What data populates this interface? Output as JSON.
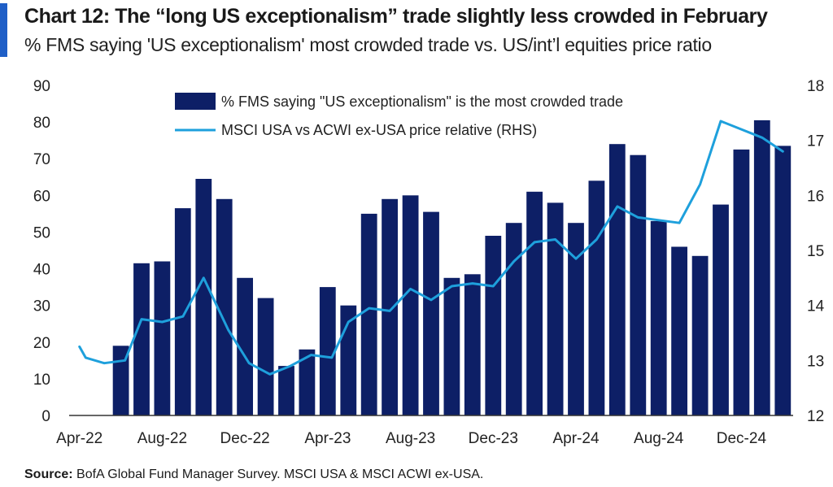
{
  "header": {
    "title": "Chart 12: The “long US exceptionalism” trade slightly less crowded in February",
    "subtitle": "% FMS saying 'US exceptionalism' most crowded trade vs. US/int’l equities price ratio"
  },
  "footer": {
    "source_label": "Source:",
    "source_text": " BofA Global Fund Manager Survey. MSCI USA & MSCI ACWI ex-USA."
  },
  "colors": {
    "accent": "#1f5fc7",
    "bar": "#0d1f66",
    "line": "#1ea0dc"
  },
  "chart_data": {
    "type": "bar",
    "months": [
      "Apr-22",
      "May-22",
      "Jun-22",
      "Jul-22",
      "Aug-22",
      "Sep-22",
      "Oct-22",
      "Nov-22",
      "Dec-22",
      "Jan-23",
      "Feb-23",
      "Mar-23",
      "Apr-23",
      "May-23",
      "Jun-23",
      "Jul-23",
      "Aug-23",
      "Sep-23",
      "Oct-23",
      "Nov-23",
      "Dec-23",
      "Jan-24",
      "Feb-24",
      "Mar-24",
      "Apr-24",
      "May-24",
      "Jun-24",
      "Jul-24",
      "Aug-24",
      "Sep-24",
      "Oct-24",
      "Nov-24",
      "Dec-24",
      "Jan-25",
      "Feb-25"
    ],
    "x_tick_labels": [
      "Apr-22",
      "Aug-22",
      "Dec-22",
      "Apr-23",
      "Aug-23",
      "Dec-23",
      "Apr-24",
      "Aug-24",
      "Dec-24"
    ],
    "y_left": {
      "ticks": [
        0,
        10,
        20,
        30,
        40,
        50,
        60,
        70,
        80,
        90
      ],
      "ylim": [
        0,
        90
      ]
    },
    "y_right": {
      "ticks": [
        12,
        13,
        14,
        15,
        16,
        17,
        18
      ],
      "ylim": [
        12,
        18
      ]
    },
    "legend_position": "top-center",
    "series": [
      {
        "name": "% FMS saying \"US exceptionalism\" is the most crowded trade",
        "type": "bar",
        "axis": "left",
        "values": [
          null,
          null,
          19,
          41.5,
          42,
          56.5,
          64.5,
          59,
          37.5,
          32,
          13.5,
          18,
          35,
          30,
          55,
          59,
          60,
          55.5,
          37.5,
          38.5,
          49,
          52.5,
          61,
          58,
          52.5,
          64,
          74,
          71,
          53,
          46,
          43.5,
          57.5,
          72.5,
          80.5,
          73.5
        ]
      },
      {
        "name": "MSCI USA vs ACWI ex-USA price relative (RHS)",
        "type": "line",
        "axis": "right",
        "points": [
          [
            0,
            13.25
          ],
          [
            0.3,
            13.05
          ],
          [
            1.2,
            12.95
          ],
          [
            2.2,
            13.0
          ],
          [
            3,
            13.75
          ],
          [
            4,
            13.7
          ],
          [
            5,
            13.8
          ],
          [
            6,
            14.5
          ],
          [
            7.2,
            13.55
          ],
          [
            8.2,
            12.95
          ],
          [
            9.2,
            12.75
          ],
          [
            10.2,
            12.9
          ],
          [
            11.2,
            13.1
          ],
          [
            12.2,
            13.05
          ],
          [
            13,
            13.7
          ],
          [
            14,
            13.95
          ],
          [
            15,
            13.9
          ],
          [
            16,
            14.3
          ],
          [
            17,
            14.1
          ],
          [
            18,
            14.35
          ],
          [
            19,
            14.4
          ],
          [
            20,
            14.35
          ],
          [
            21,
            14.8
          ],
          [
            22,
            15.15
          ],
          [
            23,
            15.2
          ],
          [
            24,
            14.85
          ],
          [
            25,
            15.2
          ],
          [
            26,
            15.8
          ],
          [
            27,
            15.6
          ],
          [
            28,
            15.55
          ],
          [
            29,
            15.5
          ],
          [
            30,
            16.2
          ],
          [
            31,
            17.35
          ],
          [
            32,
            17.2
          ],
          [
            33,
            17.05
          ],
          [
            34,
            16.8
          ]
        ]
      }
    ]
  }
}
